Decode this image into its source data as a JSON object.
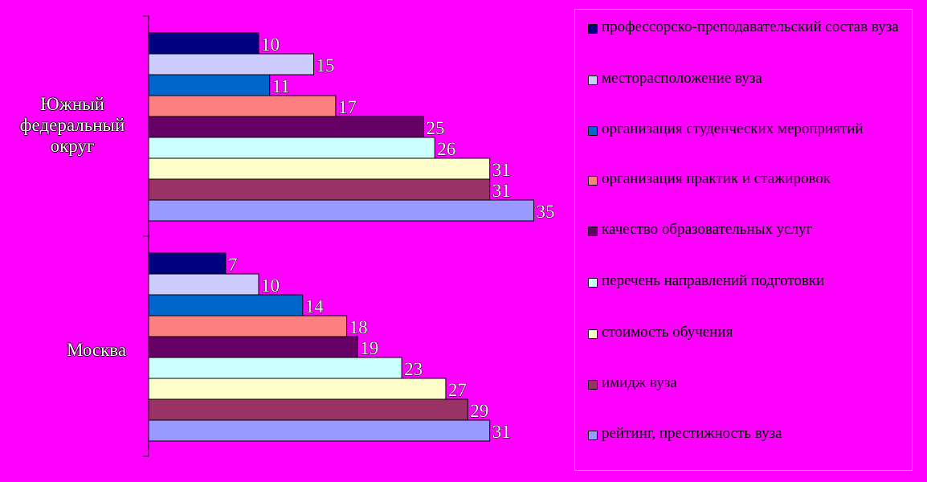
{
  "chart_data": {
    "type": "bar",
    "orientation": "horizontal",
    "categories": [
      "Южный федеральный округ",
      "Москва"
    ],
    "series": [
      {
        "name": "профессорско-преподавательский состав вуза",
        "color": "#000080",
        "values": [
          10,
          7
        ]
      },
      {
        "name": "месторасположение вуза",
        "color": "#ccccff",
        "values": [
          15,
          10
        ]
      },
      {
        "name": "организация студенческих мероприятий",
        "color": "#0066cc",
        "values": [
          11,
          14
        ]
      },
      {
        "name": "организация практик и стажировок",
        "color": "#ff8080",
        "values": [
          17,
          18
        ]
      },
      {
        "name": "качество образовательных услуг",
        "color": "#660066",
        "values": [
          25,
          19
        ]
      },
      {
        "name": "перечень  направлений подготовки",
        "color": "#ccffff",
        "values": [
          26,
          23
        ]
      },
      {
        "name": "стоимость обучения",
        "color": "#ffffcc",
        "values": [
          31,
          27
        ]
      },
      {
        "name": "имидж вуза",
        "color": "#993366",
        "values": [
          31,
          29
        ]
      },
      {
        "name": "рейтинг, престижность вуза",
        "color": "#9999ff",
        "values": [
          35,
          31
        ]
      }
    ],
    "xlim": [
      0,
      35
    ],
    "grid": false,
    "legend": "right",
    "background": "#ff00ff"
  }
}
